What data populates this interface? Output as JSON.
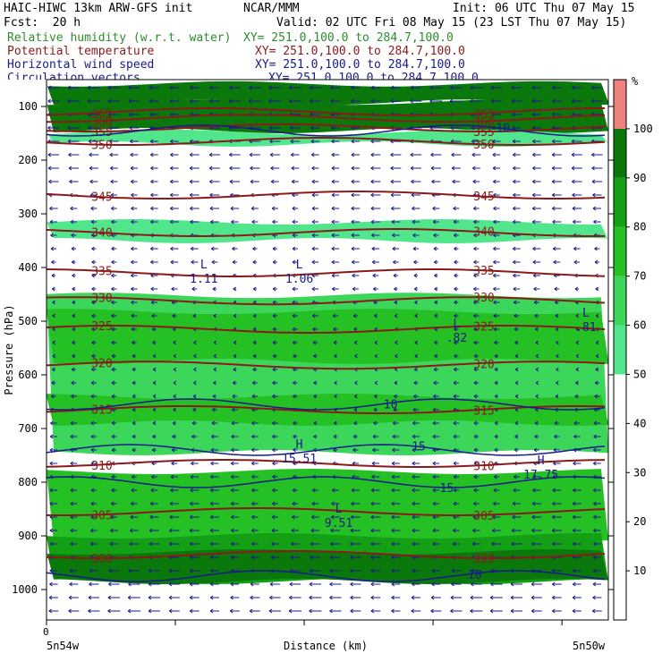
{
  "header": {
    "model": "HAIC-HIWC 13km ARW-GFS init",
    "org": "NCAR/MMM",
    "init": "Init: 06 UTC Thu 07 May 15",
    "fcst": "Fcst:  20 h",
    "valid": "Valid: 02 UTC Fri 08 May 15 (23 LST Thu 07 May 15)"
  },
  "fields": [
    {
      "name": "Relative humidity (w.r.t. water)",
      "xy": "XY= 251.0,100.0 to 284.7,100.0",
      "color": "#2e8b2e"
    },
    {
      "name": "Potential temperature",
      "xy": "XY= 251.0,100.0 to 284.7,100.0",
      "color": "#8b1a1a"
    },
    {
      "name": "Horizontal wind speed",
      "xy": "XY= 251.0,100.0 to 284.7,100.0",
      "color": "#1a1a8b"
    },
    {
      "name": "Circulation vectors",
      "xy": "XY= 251.0,100.0 to 284.7,100.0",
      "color": "#1a1a8b"
    }
  ],
  "chart_data": {
    "type": "heatmap",
    "ylabel": "Pressure (hPa)",
    "xlabel": "Distance (km)",
    "x_start_label": "0",
    "x_left_label": "5n54w",
    "x_right_label": "5n50w",
    "ylim": [
      1050,
      50
    ],
    "yticks": [
      100,
      200,
      300,
      400,
      500,
      600,
      700,
      800,
      900,
      1000
    ],
    "colorbar": {
      "unit": "%",
      "levels": [
        10,
        20,
        30,
        40,
        50,
        60,
        70,
        80,
        90,
        100
      ],
      "colors": [
        "#ffffff",
        "#ffffff",
        "#ffffff",
        "#ffffff",
        "#ffffff",
        "#52e68c",
        "#3cd65a",
        "#24c024",
        "#14a014",
        "#0a780a",
        "#f08080"
      ]
    },
    "humidity_bands": [
      {
        "p_top": 58,
        "p_bot": 92,
        "rh": 95
      },
      {
        "p_top": 92,
        "p_bot": 145,
        "rh": 90
      },
      {
        "p_top": 148,
        "p_bot": 170,
        "rh": 55
      },
      {
        "p_top": 315,
        "p_bot": 350,
        "rh": 58
      },
      {
        "p_top": 452,
        "p_bot": 745,
        "rh": 65
      },
      {
        "p_top": 482,
        "p_bot": 575,
        "rh": 75
      },
      {
        "p_top": 640,
        "p_bot": 690,
        "rh": 75
      },
      {
        "p_top": 780,
        "p_bot": 910,
        "rh": 70
      },
      {
        "p_top": 900,
        "p_bot": 985,
        "rh": 85
      },
      {
        "p_top": 930,
        "p_bot": 985,
        "rh": 92
      }
    ],
    "theta_contours": [
      {
        "value": 300,
        "p": 935
      },
      {
        "value": 305,
        "p": 855
      },
      {
        "value": 310,
        "p": 765
      },
      {
        "value": 315,
        "p": 665
      },
      {
        "value": 320,
        "p": 582
      },
      {
        "value": 325,
        "p": 515
      },
      {
        "value": 330,
        "p": 462
      },
      {
        "value": 335,
        "p": 410
      },
      {
        "value": 340,
        "p": 335
      },
      {
        "value": 345,
        "p": 265
      },
      {
        "value": 350,
        "p": 165
      },
      {
        "value": 355,
        "p": 140
      },
      {
        "value": 360,
        "p": 122
      },
      {
        "value": 365,
        "p": 110
      }
    ],
    "wind_contours": [
      {
        "value": 10,
        "p": 655
      },
      {
        "value": 15,
        "p": 740
      },
      {
        "value": 15,
        "p": 800
      },
      {
        "value": 10,
        "p": 975
      },
      {
        "value": 10,
        "p": 145
      }
    ],
    "extrema": [
      {
        "type": "L",
        "value": "1.11",
        "x_frac": 0.28,
        "p": 415
      },
      {
        "type": "L",
        "value": "1.06",
        "x_frac": 0.45,
        "p": 415
      },
      {
        "type": "L",
        "value": ".82",
        "x_frac": 0.73,
        "p": 525
      },
      {
        "type": "L",
        "value": ".81",
        "x_frac": 0.96,
        "p": 505
      },
      {
        "type": "H",
        "value": "15.51",
        "x_frac": 0.45,
        "p": 750
      },
      {
        "type": "H",
        "value": "17.75",
        "x_frac": 0.88,
        "p": 780
      },
      {
        "type": "L",
        "value": "9.51",
        "x_frac": 0.52,
        "p": 870
      }
    ]
  }
}
